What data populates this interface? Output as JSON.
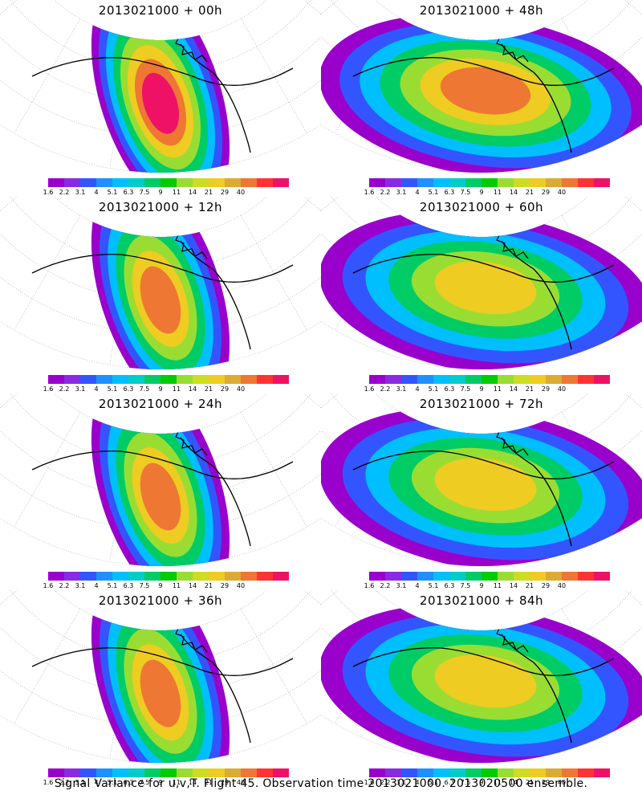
{
  "footer": "Signal Variance for u,v,T. Flight 45. Observation time 2013021000. 2013020500 ensemble.",
  "colorbar": {
    "colors": [
      "#9900cc",
      "#8a2be2",
      "#3355ff",
      "#1e90ff",
      "#00bfff",
      "#00cccc",
      "#00cc66",
      "#00cc00",
      "#99dd33",
      "#ccdd22",
      "#eecc22",
      "#ddaa33",
      "#ee7733",
      "#ff3333",
      "#ee1166"
    ],
    "labels": [
      "1.6",
      "2.2",
      "3.1",
      "4",
      "5.1",
      "6.3",
      "7.5",
      "9",
      "11",
      "14",
      "21",
      "29",
      "40"
    ]
  },
  "chart_data": [
    {
      "type": "heatmap",
      "title": "2013021000 + 00h",
      "column": "left",
      "row": 0,
      "peak_value_level": "40"
    },
    {
      "type": "heatmap",
      "title": "2013021000 + 12h",
      "column": "left",
      "row": 1,
      "peak_value_level": "29"
    },
    {
      "type": "heatmap",
      "title": "2013021000 + 24h",
      "column": "left",
      "row": 2,
      "peak_value_level": "29"
    },
    {
      "type": "heatmap",
      "title": "2013021000 + 36h",
      "column": "left",
      "row": 3,
      "peak_value_level": "21"
    },
    {
      "type": "heatmap",
      "title": "2013021000 + 48h",
      "column": "right",
      "row": 0,
      "peak_value_level": "21"
    },
    {
      "type": "heatmap",
      "title": "2013021000 + 60h",
      "column": "right",
      "row": 1,
      "peak_value_level": "14"
    },
    {
      "type": "heatmap",
      "title": "2013021000 + 72h",
      "column": "right",
      "row": 2,
      "peak_value_level": "14"
    },
    {
      "type": "heatmap",
      "title": "2013021000 + 84h",
      "column": "right",
      "row": 3,
      "peak_value_level": "14"
    }
  ]
}
